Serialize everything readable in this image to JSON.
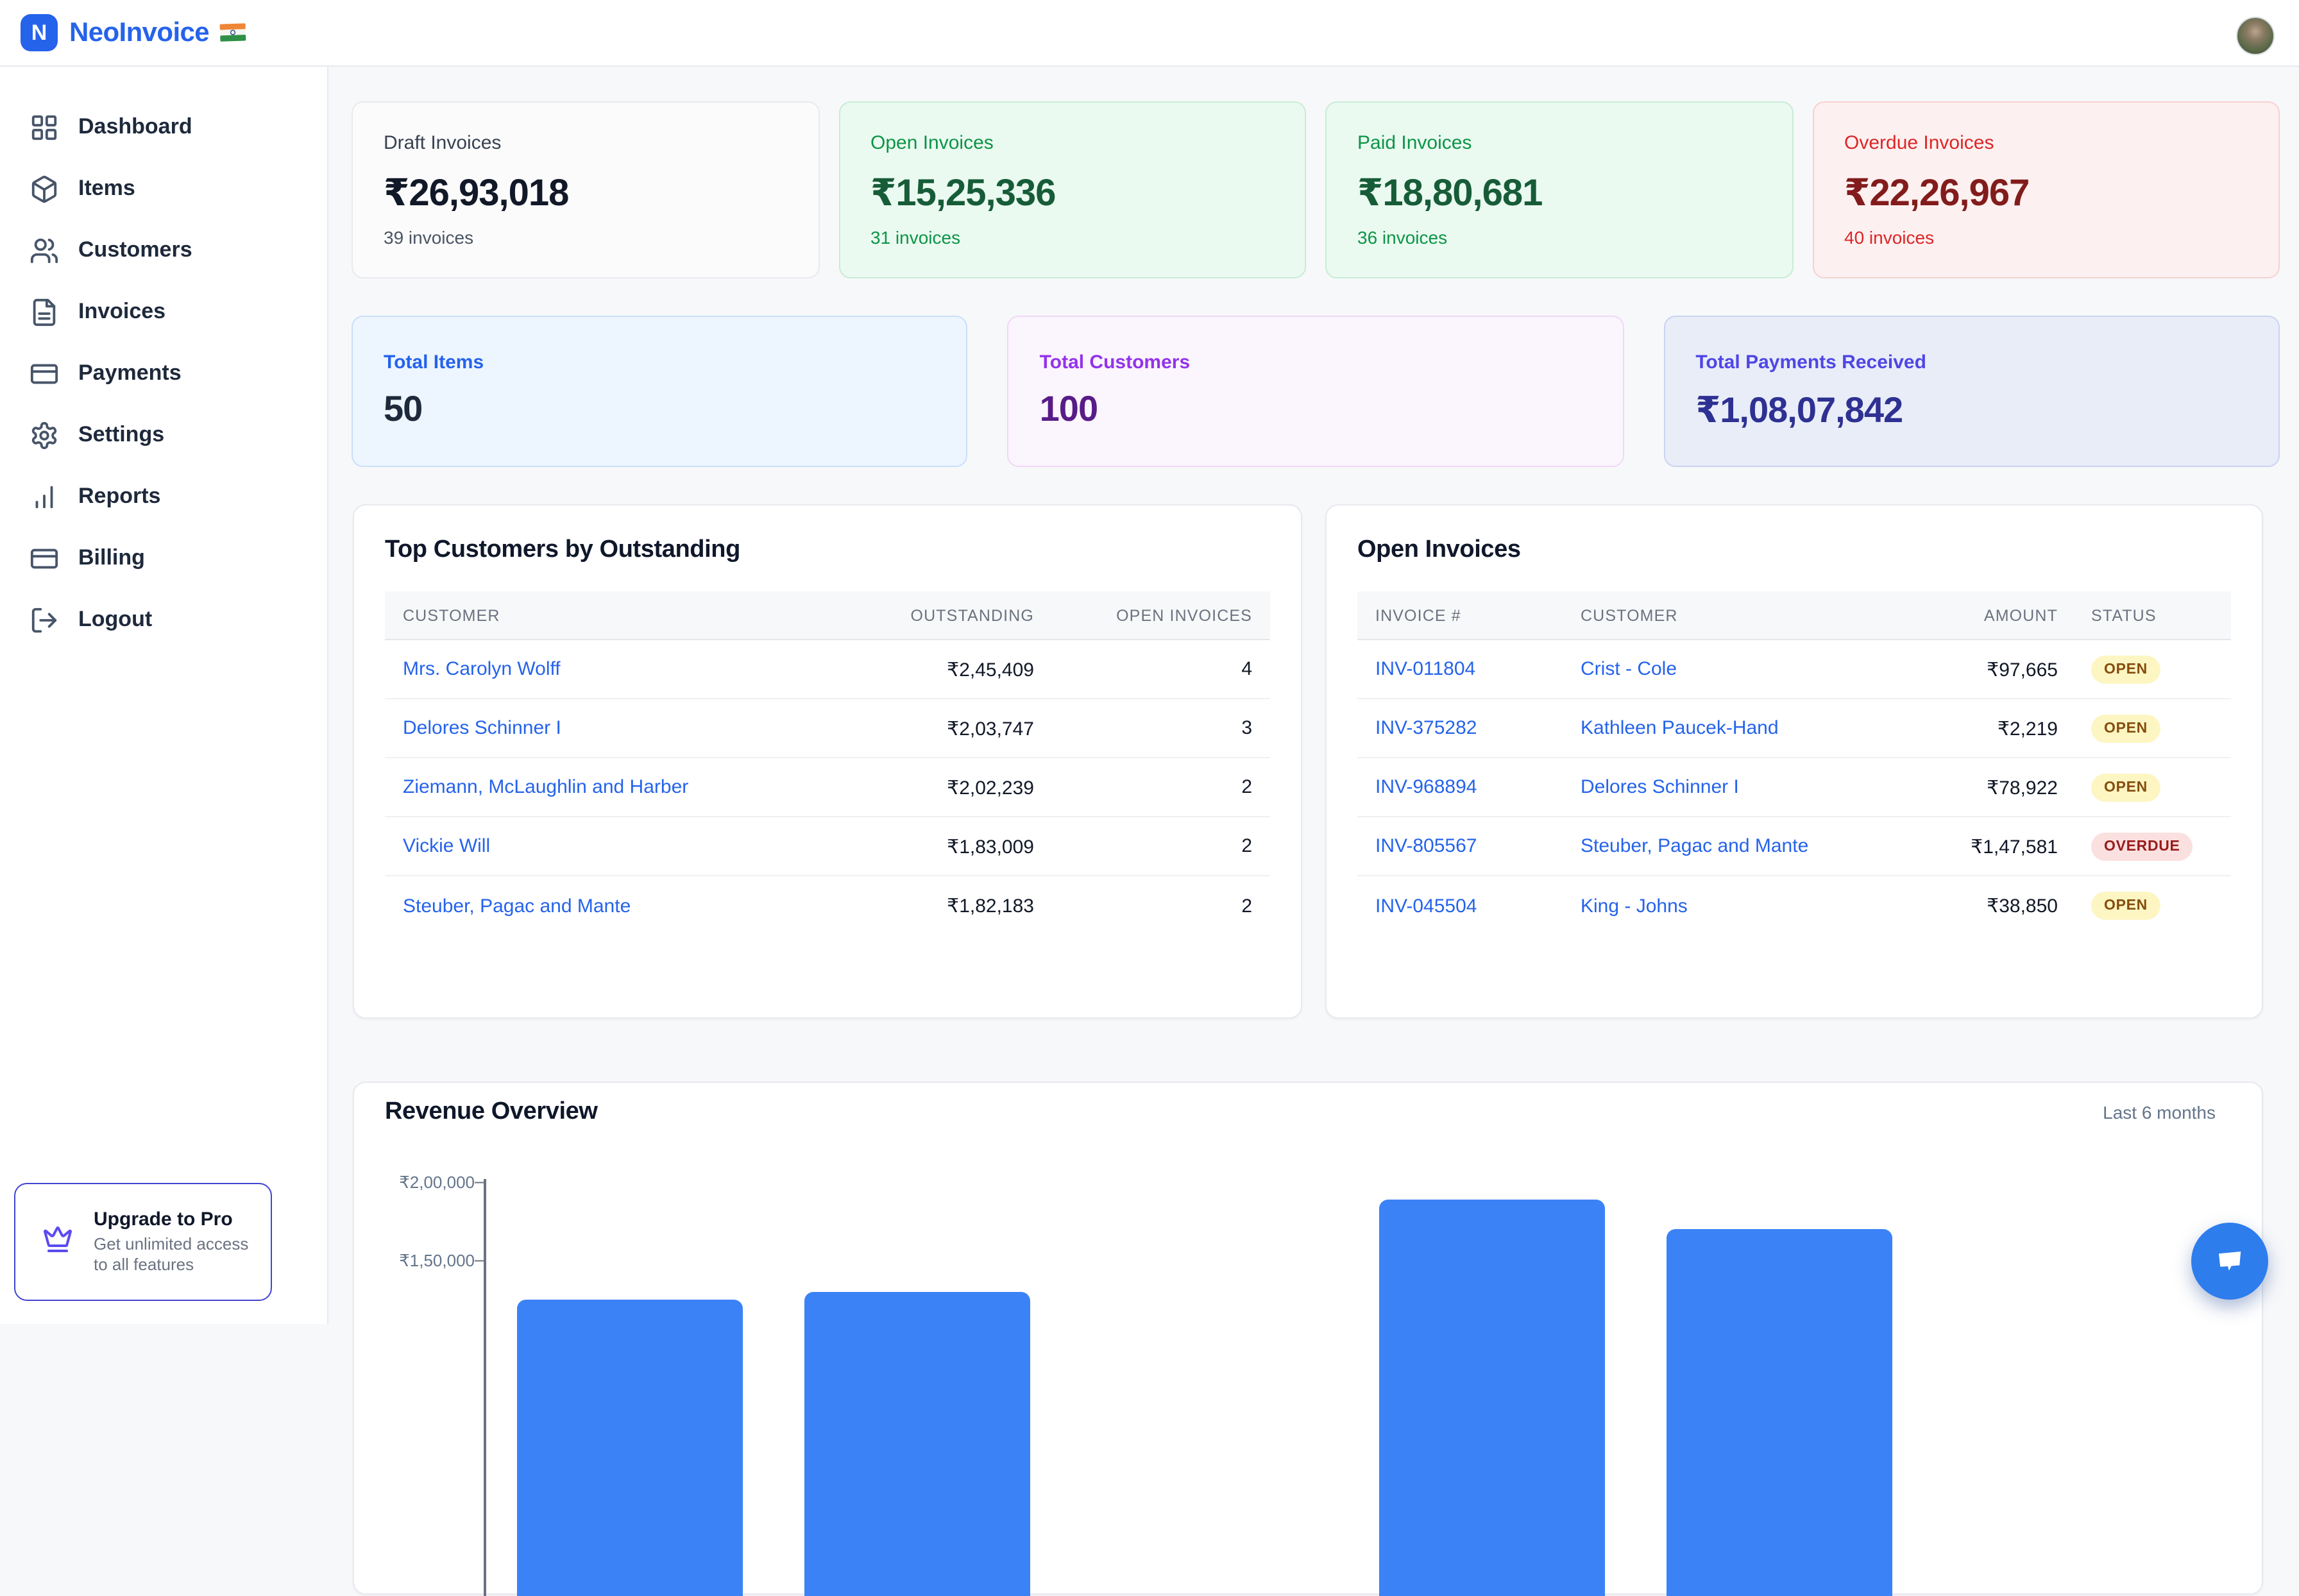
{
  "header": {
    "app_name": "NeoInvoice",
    "logo_letter": "N",
    "flag": "india-flag"
  },
  "sidebar": {
    "items": [
      {
        "label": "Dashboard",
        "icon": "layout-grid"
      },
      {
        "label": "Items",
        "icon": "package"
      },
      {
        "label": "Customers",
        "icon": "users"
      },
      {
        "label": "Invoices",
        "icon": "file-text"
      },
      {
        "label": "Payments",
        "icon": "credit-card"
      },
      {
        "label": "Settings",
        "icon": "settings"
      },
      {
        "label": "Reports",
        "icon": "bar-chart"
      },
      {
        "label": "Billing",
        "icon": "credit-card"
      },
      {
        "label": "Logout",
        "icon": "log-out"
      }
    ],
    "upgrade": {
      "title": "Upgrade to Pro",
      "subtitle": "Get unlimited access to all features",
      "icon": "crown"
    }
  },
  "summary_cards": [
    {
      "label": "Draft Invoices",
      "amount": "₹26,93,018",
      "sub": "39 invoices",
      "theme": "neutral"
    },
    {
      "label": "Open Invoices",
      "amount": "₹15,25,336",
      "sub": "31 invoices",
      "theme": "green"
    },
    {
      "label": "Paid Invoices",
      "amount": "₹18,80,681",
      "sub": "36 invoices",
      "theme": "green"
    },
    {
      "label": "Overdue Invoices",
      "amount": "₹22,26,967",
      "sub": "40 invoices",
      "theme": "red"
    }
  ],
  "stat_cards": [
    {
      "label": "Total Items",
      "value": "50",
      "theme": "blue"
    },
    {
      "label": "Total Customers",
      "value": "100",
      "theme": "purple"
    },
    {
      "label": "Total Payments Received",
      "value": "₹1,08,07,842",
      "theme": "indigo"
    }
  ],
  "top_customers": {
    "title": "Top Customers by Outstanding",
    "columns": [
      "Customer",
      "Outstanding",
      "Open Invoices"
    ],
    "rows": [
      {
        "customer": "Mrs. Carolyn Wolff",
        "outstanding": "₹2,45,409",
        "open_invoices": "4"
      },
      {
        "customer": "Delores Schinner I",
        "outstanding": "₹2,03,747",
        "open_invoices": "3"
      },
      {
        "customer": "Ziemann, McLaughlin and Harber",
        "outstanding": "₹2,02,239",
        "open_invoices": "2"
      },
      {
        "customer": "Vickie Will",
        "outstanding": "₹1,83,009",
        "open_invoices": "2"
      },
      {
        "customer": "Steuber, Pagac and Mante",
        "outstanding": "₹1,82,183",
        "open_invoices": "2"
      }
    ]
  },
  "open_invoices": {
    "title": "Open Invoices",
    "columns": [
      "Invoice #",
      "Customer",
      "Amount",
      "Status"
    ],
    "rows": [
      {
        "invoice": "INV-011804",
        "customer": "Crist - Cole",
        "amount": "₹97,665",
        "status": "OPEN"
      },
      {
        "invoice": "INV-375282",
        "customer": "Kathleen Paucek-Hand",
        "amount": "₹2,219",
        "status": "OPEN"
      },
      {
        "invoice": "INV-968894",
        "customer": "Delores Schinner I",
        "amount": "₹78,922",
        "status": "OPEN"
      },
      {
        "invoice": "INV-805567",
        "customer": "Steuber, Pagac and Mante",
        "amount": "₹1,47,581",
        "status": "OVERDUE"
      },
      {
        "invoice": "INV-045504",
        "customer": "King - Johns",
        "amount": "₹38,850",
        "status": "OPEN"
      }
    ]
  },
  "revenue": {
    "title": "Revenue Overview",
    "period": "Last 6 months"
  },
  "chart_data": {
    "type": "bar",
    "title": "Revenue Overview",
    "subtitle": "Last 6 months",
    "currency": "INR",
    "ylim": [
      0,
      200000
    ],
    "yticks": [
      {
        "value": 200000,
        "label": "₹2,00,000"
      },
      {
        "value": 150000,
        "label": "₹1,50,000"
      }
    ],
    "grid": false,
    "note": "Bottom of chart and x-axis month labels are cut off by the viewport; slots 3 and 6 have no bar visible above the cutoff.",
    "bars": [
      {
        "slot": 1,
        "value": 125000
      },
      {
        "slot": 2,
        "value": 130000
      },
      {
        "slot": 3,
        "value": null
      },
      {
        "slot": 4,
        "value": 189000
      },
      {
        "slot": 5,
        "value": 170000
      },
      {
        "slot": 6,
        "value": null
      }
    ]
  },
  "colors": {
    "brand_accent": "#2563eb",
    "bar_fill": "#3b82f6",
    "open_badge_bg": "#fdf6c3",
    "open_badge_text": "#854d0e",
    "overdue_badge_bg": "#fbe0e0",
    "overdue_badge_text": "#991b1b",
    "green_card_text": "#0d9447",
    "red_card_text": "#dc2626",
    "upgrade_border": "#4144d3"
  }
}
